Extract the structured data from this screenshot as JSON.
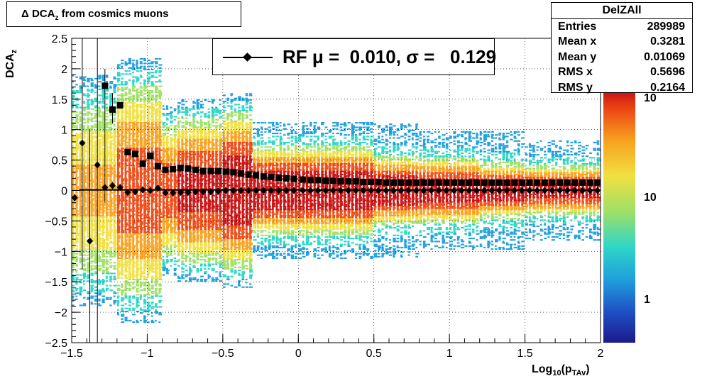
{
  "title": "Δ DCA",
  "title_sub": "z",
  "title_rest": " from cosmics muons",
  "xlabel_main": "Log",
  "xlabel_sub1": "10",
  "xlabel_paren": "(p",
  "xlabel_sub2": "TAv",
  "xlabel_close": ")",
  "ylabel_main": "DCA",
  "ylabel_sub": "z",
  "stats": {
    "name": "DelZAll",
    "rows": [
      {
        "label": "Entries",
        "value": "289989"
      },
      {
        "label": "Mean x",
        "value": "0.3281"
      },
      {
        "label": "Mean y",
        "value": "0.01069"
      },
      {
        "label": "RMS x",
        "value": "0.5696"
      },
      {
        "label": "RMS y",
        "value": "0.2164"
      }
    ]
  },
  "legend": {
    "text": "RF μ =  0.010, σ =   0.129"
  },
  "colors": {
    "fit_line": "#000000",
    "markers": "#000000",
    "palette": [
      "#1a1a8c",
      "#1f4fc4",
      "#1f9fdc",
      "#2fd6c6",
      "#9fe066",
      "#f0e040",
      "#f7a21f",
      "#ee4a14",
      "#c81010"
    ]
  },
  "chart_data": {
    "type": "heatmap",
    "x_range": [
      -1.5,
      2
    ],
    "y_range": [
      -2.5,
      2.5
    ],
    "x_ticks": [
      -1.5,
      -1,
      -0.5,
      0,
      0.5,
      1,
      1.5,
      2
    ],
    "x_tick_labels": [
      "−1.5",
      "−1",
      "−0.5",
      "0",
      "0.5",
      "1",
      "1.5",
      "2"
    ],
    "y_ticks": [
      -2.5,
      -2,
      -1.5,
      -1,
      -0.5,
      0,
      0.5,
      1,
      1.5,
      2,
      2.5
    ],
    "y_tick_labels": [
      "−2.5",
      "−2",
      "−1.5",
      "−1",
      "−0.5",
      "0",
      "0.5",
      "1",
      "1.5",
      "2",
      "2.5"
    ],
    "grid": true,
    "z_scale": "log",
    "z_tick_labels": [
      "1",
      "10",
      "10"
    ],
    "fit_line_y": 0.01,
    "means": [
      {
        "x": -1.48,
        "y": -0.12
      },
      {
        "x": -1.43,
        "y": 0.78
      },
      {
        "x": -1.38,
        "y": -0.83
      },
      {
        "x": -1.33,
        "y": 0.42
      },
      {
        "x": -1.28,
        "y": 0.05
      },
      {
        "x": -1.23,
        "y": 0.08
      },
      {
        "x": -1.18,
        "y": 0.05
      },
      {
        "x": -1.13,
        "y": -0.03
      },
      {
        "x": -1.08,
        "y": -0.02
      },
      {
        "x": -1.03,
        "y": 0.01
      },
      {
        "x": -0.98,
        "y": 0.0
      },
      {
        "x": -0.93,
        "y": 0.04
      },
      {
        "x": -0.88,
        "y": -0.04
      },
      {
        "x": -0.83,
        "y": -0.04
      },
      {
        "x": -0.78,
        "y": -0.03
      },
      {
        "x": -0.73,
        "y": -0.03
      },
      {
        "x": -0.68,
        "y": -0.02
      },
      {
        "x": -0.63,
        "y": -0.02
      },
      {
        "x": -0.58,
        "y": -0.02
      },
      {
        "x": -0.53,
        "y": -0.01
      },
      {
        "x": -0.48,
        "y": 0.0
      },
      {
        "x": -0.43,
        "y": 0.0
      },
      {
        "x": -0.38,
        "y": 0.0
      },
      {
        "x": -0.33,
        "y": 0.0
      },
      {
        "x": -0.28,
        "y": 0.0
      },
      {
        "x": -0.23,
        "y": 0.0
      },
      {
        "x": -0.18,
        "y": 0.0
      },
      {
        "x": -0.13,
        "y": 0.0
      },
      {
        "x": -0.08,
        "y": 0.0
      },
      {
        "x": -0.03,
        "y": 0.0
      },
      {
        "x": 0.03,
        "y": 0.0
      },
      {
        "x": 0.08,
        "y": 0.0
      },
      {
        "x": 0.13,
        "y": 0.0
      },
      {
        "x": 0.18,
        "y": 0.0
      },
      {
        "x": 0.23,
        "y": 0.0
      },
      {
        "x": 0.28,
        "y": 0.0
      },
      {
        "x": 0.33,
        "y": 0.0
      },
      {
        "x": 0.38,
        "y": 0.0
      },
      {
        "x": 0.43,
        "y": 0.0
      },
      {
        "x": 0.48,
        "y": 0.0
      },
      {
        "x": 0.53,
        "y": 0.0
      },
      {
        "x": 0.58,
        "y": 0.0
      },
      {
        "x": 0.63,
        "y": 0.0
      },
      {
        "x": 0.68,
        "y": 0.0
      },
      {
        "x": 0.73,
        "y": 0.0
      },
      {
        "x": 0.78,
        "y": 0.0
      },
      {
        "x": 0.83,
        "y": 0.0
      },
      {
        "x": 0.88,
        "y": 0.0
      },
      {
        "x": 0.93,
        "y": 0.0
      },
      {
        "x": 0.98,
        "y": 0.0
      },
      {
        "x": 1.03,
        "y": 0.0
      },
      {
        "x": 1.08,
        "y": 0.0
      },
      {
        "x": 1.13,
        "y": 0.0
      },
      {
        "x": 1.18,
        "y": 0.0
      },
      {
        "x": 1.23,
        "y": 0.0
      },
      {
        "x": 1.28,
        "y": 0.0
      },
      {
        "x": 1.33,
        "y": 0.0
      },
      {
        "x": 1.38,
        "y": 0.0
      },
      {
        "x": 1.43,
        "y": 0.0
      },
      {
        "x": 1.48,
        "y": 0.0
      },
      {
        "x": 1.53,
        "y": 0.0
      },
      {
        "x": 1.58,
        "y": 0.0
      },
      {
        "x": 1.63,
        "y": 0.0
      },
      {
        "x": 1.68,
        "y": 0.0
      },
      {
        "x": 1.73,
        "y": 0.0
      },
      {
        "x": 1.78,
        "y": 0.0
      },
      {
        "x": 1.83,
        "y": 0.0
      },
      {
        "x": 1.88,
        "y": 0.0
      },
      {
        "x": 1.93,
        "y": 0.0
      },
      {
        "x": 1.98,
        "y": 0.0
      }
    ],
    "sigmas": [
      {
        "x": -1.28,
        "y": 1.72
      },
      {
        "x": -1.23,
        "y": 1.33
      },
      {
        "x": -1.18,
        "y": 1.4
      },
      {
        "x": -1.13,
        "y": 0.63
      },
      {
        "x": -1.08,
        "y": 0.6
      },
      {
        "x": -1.03,
        "y": 0.44
      },
      {
        "x": -0.98,
        "y": 0.57
      },
      {
        "x": -0.93,
        "y": 0.4
      },
      {
        "x": -0.88,
        "y": 0.34
      },
      {
        "x": -0.83,
        "y": 0.35
      },
      {
        "x": -0.78,
        "y": 0.37
      },
      {
        "x": -0.73,
        "y": 0.36
      },
      {
        "x": -0.68,
        "y": 0.34
      },
      {
        "x": -0.63,
        "y": 0.32
      },
      {
        "x": -0.58,
        "y": 0.32
      },
      {
        "x": -0.53,
        "y": 0.32
      },
      {
        "x": -0.48,
        "y": 0.31
      },
      {
        "x": -0.43,
        "y": 0.3
      },
      {
        "x": -0.38,
        "y": 0.28
      },
      {
        "x": -0.33,
        "y": 0.26
      },
      {
        "x": -0.28,
        "y": 0.25
      },
      {
        "x": -0.23,
        "y": 0.23
      },
      {
        "x": -0.18,
        "y": 0.22
      },
      {
        "x": -0.13,
        "y": 0.21
      },
      {
        "x": -0.08,
        "y": 0.2
      },
      {
        "x": -0.03,
        "y": 0.19
      },
      {
        "x": 0.03,
        "y": 0.18
      },
      {
        "x": 0.08,
        "y": 0.17
      },
      {
        "x": 0.13,
        "y": 0.17
      },
      {
        "x": 0.18,
        "y": 0.16
      },
      {
        "x": 0.23,
        "y": 0.16
      },
      {
        "x": 0.28,
        "y": 0.15
      },
      {
        "x": 0.33,
        "y": 0.15
      },
      {
        "x": 0.38,
        "y": 0.15
      },
      {
        "x": 0.43,
        "y": 0.14
      },
      {
        "x": 0.48,
        "y": 0.14
      },
      {
        "x": 0.53,
        "y": 0.14
      },
      {
        "x": 0.58,
        "y": 0.13
      },
      {
        "x": 0.63,
        "y": 0.13
      },
      {
        "x": 0.68,
        "y": 0.13
      },
      {
        "x": 0.73,
        "y": 0.13
      },
      {
        "x": 0.78,
        "y": 0.13
      },
      {
        "x": 0.83,
        "y": 0.13
      },
      {
        "x": 0.88,
        "y": 0.13
      },
      {
        "x": 0.93,
        "y": 0.13
      },
      {
        "x": 0.98,
        "y": 0.13
      },
      {
        "x": 1.03,
        "y": 0.13
      },
      {
        "x": 1.08,
        "y": 0.13
      },
      {
        "x": 1.13,
        "y": 0.13
      },
      {
        "x": 1.18,
        "y": 0.13
      },
      {
        "x": 1.23,
        "y": 0.13
      },
      {
        "x": 1.28,
        "y": 0.13
      },
      {
        "x": 1.33,
        "y": 0.13
      },
      {
        "x": 1.38,
        "y": 0.13
      },
      {
        "x": 1.43,
        "y": 0.13
      },
      {
        "x": 1.48,
        "y": 0.13
      },
      {
        "x": 1.53,
        "y": 0.13
      },
      {
        "x": 1.58,
        "y": 0.13
      },
      {
        "x": 1.63,
        "y": 0.13
      },
      {
        "x": 1.68,
        "y": 0.13
      },
      {
        "x": 1.73,
        "y": 0.13
      },
      {
        "x": 1.78,
        "y": 0.13
      },
      {
        "x": 1.83,
        "y": 0.13
      },
      {
        "x": 1.88,
        "y": 0.13
      },
      {
        "x": 1.93,
        "y": 0.13
      },
      {
        "x": 1.98,
        "y": 0.13
      }
    ]
  }
}
